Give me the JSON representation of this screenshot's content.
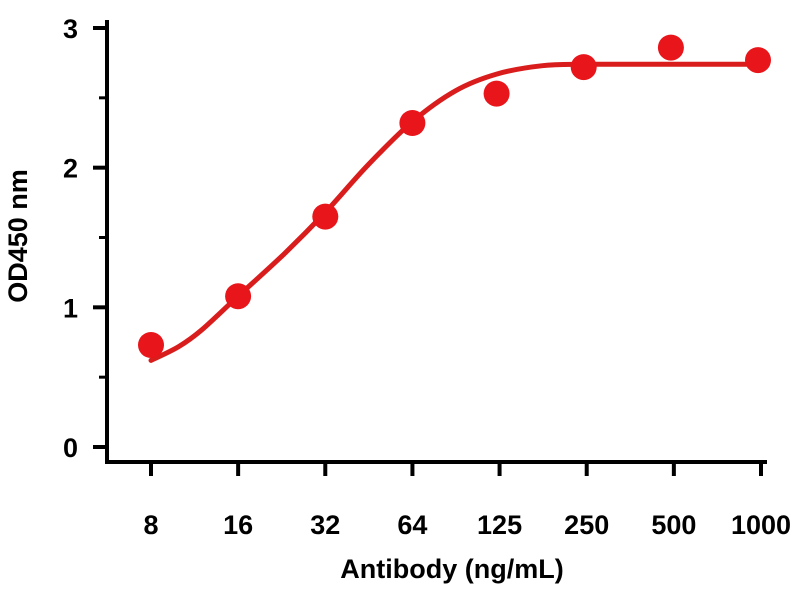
{
  "chart_data": {
    "type": "scatter",
    "xlabel": "Antibody (ng/mL)",
    "ylabel": "OD450 nm",
    "x_scale": "log",
    "x_ticks": [
      "8",
      "16",
      "32",
      "64",
      "125",
      "250",
      "500",
      "1000"
    ],
    "y_ticks": [
      "0",
      "1",
      "2",
      "3"
    ],
    "ylim": [
      0,
      3
    ],
    "grid": false,
    "legend": "none",
    "colors": {
      "point": "#e8151b",
      "line": "#d91c1c",
      "axis": "#000000"
    },
    "points": [
      {
        "x": 8,
        "y": 0.73
      },
      {
        "x": 16,
        "y": 1.08
      },
      {
        "x": 32,
        "y": 1.65
      },
      {
        "x": 64,
        "y": 2.32
      },
      {
        "x": 125,
        "y": 2.53
      },
      {
        "x": 250,
        "y": 2.72
      },
      {
        "x": 500,
        "y": 2.86
      },
      {
        "x": 1000,
        "y": 2.77
      }
    ],
    "fit_curve": [
      {
        "x": 8,
        "y": 0.62
      },
      {
        "x": 10,
        "y": 0.72
      },
      {
        "x": 12,
        "y": 0.84
      },
      {
        "x": 16,
        "y": 1.08
      },
      {
        "x": 23,
        "y": 1.38
      },
      {
        "x": 32,
        "y": 1.68
      },
      {
        "x": 45,
        "y": 2.02
      },
      {
        "x": 64,
        "y": 2.33
      },
      {
        "x": 90,
        "y": 2.55
      },
      {
        "x": 125,
        "y": 2.67
      },
      {
        "x": 180,
        "y": 2.73
      },
      {
        "x": 250,
        "y": 2.74
      },
      {
        "x": 500,
        "y": 2.74
      },
      {
        "x": 1000,
        "y": 2.74
      }
    ]
  }
}
